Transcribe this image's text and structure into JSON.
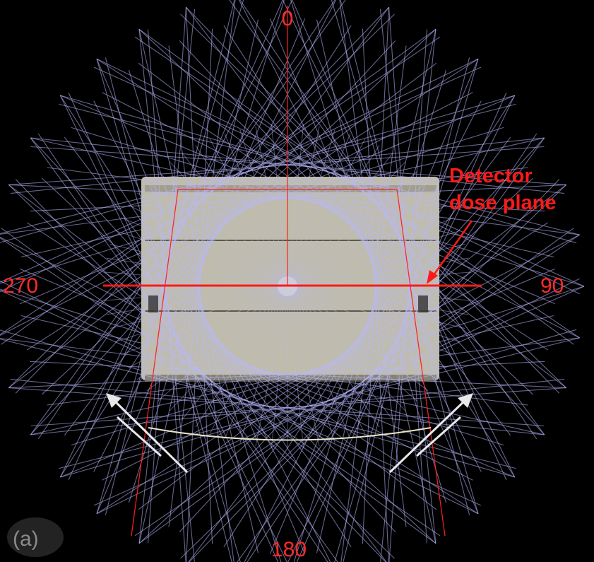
{
  "angles": {
    "top": "0",
    "right": "90",
    "bottom": "180",
    "left": "270"
  },
  "annotation": {
    "line1": "Detector",
    "line2": "dose plane"
  },
  "panel_label": "(a)",
  "colors": {
    "background": "#000000",
    "beam_rays": "#b8b8ff",
    "axis_lines": "#ff2020",
    "phantom_fill": "#c9c6b4",
    "arrows": "#e8e8e8"
  }
}
